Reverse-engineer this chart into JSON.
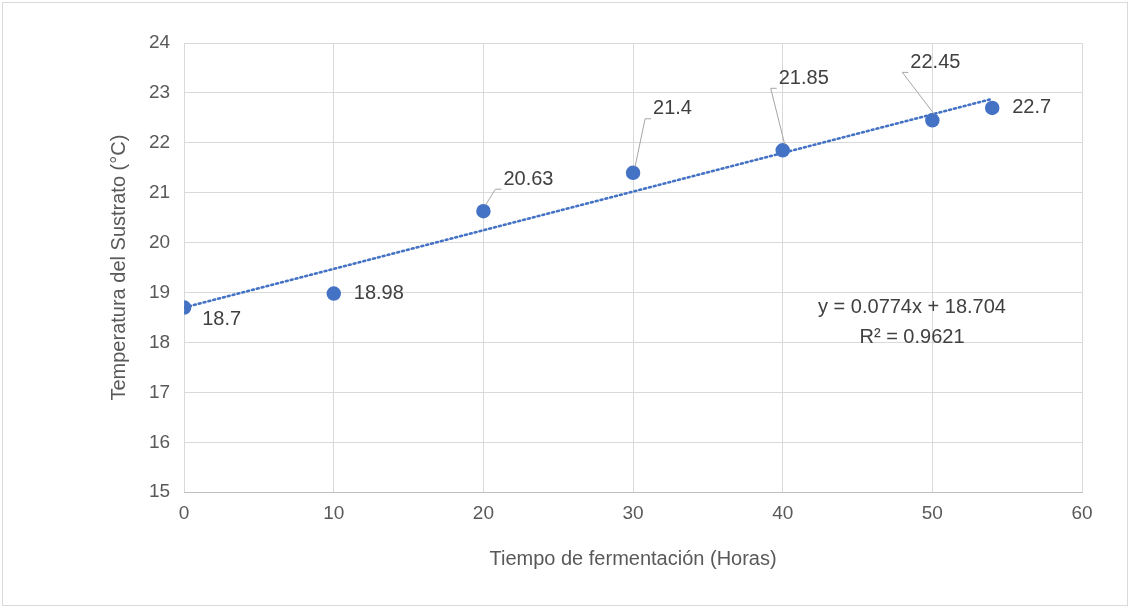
{
  "chart_data": {
    "type": "scatter",
    "xlabel": "Tiempo de fermentación (Horas)",
    "ylabel": "Temperatura del Sustrato (°C)",
    "x": [
      0,
      10,
      20,
      30,
      40,
      50,
      54
    ],
    "series": [
      {
        "type": "scatter",
        "color": "#4472c4",
        "values": [
          18.7,
          18.98,
          20.63,
          21.4,
          21.85,
          22.45,
          22.7
        ],
        "value_labels": [
          "18.7",
          "18.98",
          "20.63",
          "21.4",
          "21.85",
          "22.45",
          "22.7"
        ]
      },
      {
        "type": "line",
        "color": "#4472c4",
        "x": [
          0,
          54
        ],
        "values": [
          18.7,
          22.88
        ],
        "marker": "none",
        "line_style": "dotted"
      }
    ],
    "xlim": [
      0,
      60
    ],
    "xticks": [
      0,
      10,
      20,
      30,
      40,
      50,
      60
    ],
    "ylim": [
      15,
      24
    ],
    "yticks": [
      15,
      16,
      17,
      18,
      19,
      20,
      21,
      22,
      23,
      24
    ],
    "grid": true,
    "legend": false,
    "marker": "circle",
    "annotations": [
      "y = 0.0774x + 18.704",
      "R² = 0.9621"
    ]
  }
}
